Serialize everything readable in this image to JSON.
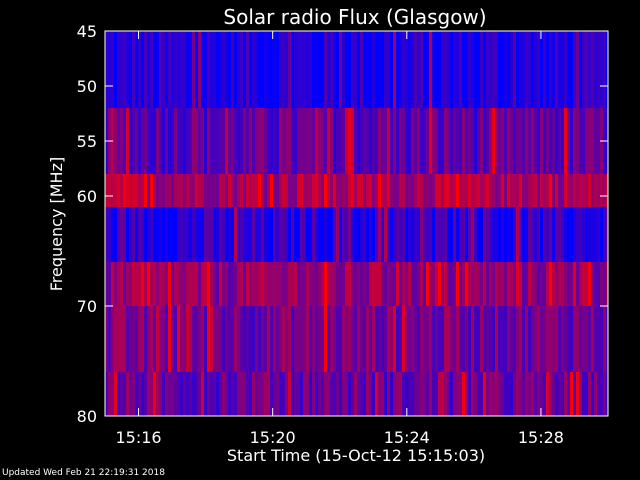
{
  "chart_data": {
    "type": "heatmap",
    "title": "Solar radio Flux (Glasgow)",
    "xlabel": "Start Time (15-Oct-12 15:15:03)",
    "ylabel": "Frequency [MHz]",
    "x_ticks": [
      "15:16",
      "15:20",
      "15:24",
      "15:28"
    ],
    "x_tick_minutes": [
      1,
      5,
      9,
      13
    ],
    "xlim_minutes": [
      0,
      15
    ],
    "y_ticks": [
      45,
      50,
      55,
      60,
      70,
      80
    ],
    "ylim": [
      45,
      80
    ],
    "frequency_bands": [
      {
        "from": 45,
        "to": 52,
        "level": 0.1
      },
      {
        "from": 52,
        "to": 58,
        "level": 0.35
      },
      {
        "from": 58,
        "to": 61,
        "level": 0.65
      },
      {
        "from": 61,
        "to": 66,
        "level": 0.15
      },
      {
        "from": 66,
        "to": 70,
        "level": 0.55
      },
      {
        "from": 70,
        "to": 76,
        "level": 0.45
      },
      {
        "from": 76,
        "to": 80,
        "level": 0.4
      }
    ],
    "colors": {
      "low": "#0000ff",
      "mid": "#800080",
      "high": "#ff0000",
      "axes": "#ffffff",
      "background": "#000000"
    }
  },
  "footer": "Updated Wed Feb 21 22:19:31 2018"
}
